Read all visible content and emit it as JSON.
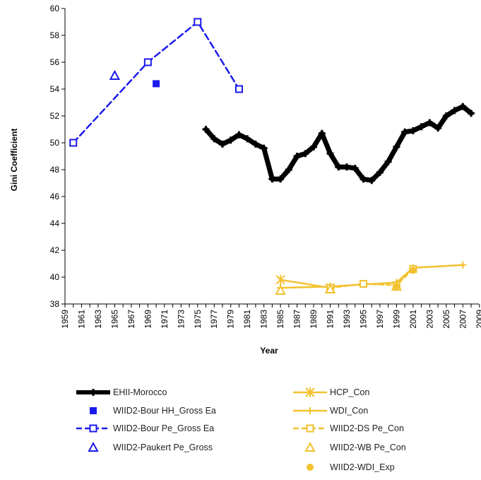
{
  "chart_data": {
    "type": "line",
    "title": "",
    "xlabel": "Year",
    "ylabel": "Gini Coefficient",
    "xlim": [
      1959,
      2009
    ],
    "ylim": [
      38,
      60
    ],
    "x_ticks": [
      "1959",
      "1961",
      "1963",
      "1965",
      "1967",
      "1969",
      "1971",
      "1973",
      "1975",
      "1977",
      "1979",
      "1981",
      "1983",
      "1985",
      "1987",
      "1989",
      "1991",
      "1993",
      "1995",
      "1997",
      "1999",
      "2001",
      "2003",
      "2005",
      "2007",
      "2009"
    ],
    "y_ticks": [
      "38",
      "40",
      "42",
      "44",
      "46",
      "48",
      "50",
      "52",
      "54",
      "56",
      "58",
      "60"
    ],
    "grid": false,
    "legend_position": "bottom",
    "series": [
      {
        "name": "EHII-Morocco",
        "style": "line-plus",
        "color": "#000000",
        "x": [
          1976,
          1977,
          1978,
          1979,
          1980,
          1981,
          1982,
          1983,
          1984,
          1985,
          1986,
          1987,
          1988,
          1989,
          1990,
          1991,
          1992,
          1993,
          1994,
          1995,
          1996,
          1997,
          1998,
          1999,
          2000,
          2001,
          2002,
          2003,
          2004,
          2005,
          2006,
          2007,
          2008
        ],
        "y": [
          51.0,
          50.3,
          49.9,
          50.2,
          50.6,
          50.3,
          49.9,
          49.6,
          47.3,
          47.3,
          48.0,
          49.0,
          49.2,
          49.7,
          50.7,
          49.2,
          48.2,
          48.2,
          48.1,
          47.3,
          47.2,
          47.8,
          48.6,
          49.7,
          50.8,
          50.9,
          51.2,
          51.5,
          51.1,
          52.0,
          52.4,
          52.7,
          52.2
        ]
      },
      {
        "name": "WIID2-Bour HH_Gross Ea",
        "style": "filled-square",
        "color": "#1a1aee",
        "x": [
          1970
        ],
        "y": [
          54.4
        ]
      },
      {
        "name": "WIID2-Bour Pe_Gross Ea",
        "style": "dashed-open-square",
        "color": "#1a1aee",
        "x": [
          1960,
          1969,
          1975,
          1980
        ],
        "y": [
          50.0,
          56.0,
          59.0,
          54.0
        ]
      },
      {
        "name": "WIID2-Paukert Pe_Gross",
        "style": "open-triangle",
        "color": "#1a1aee",
        "x": [
          1965
        ],
        "y": [
          55.0
        ]
      },
      {
        "name": "HCP_Con",
        "style": "line-star",
        "color": "#f2c12e",
        "x": [
          1985,
          1991
        ],
        "y": [
          39.8,
          39.2
        ]
      },
      {
        "name": "WDI_Con",
        "style": "line-plus",
        "color": "#f2c12e",
        "x": [
          1985,
          1991,
          1999,
          2001,
          2007
        ],
        "y": [
          39.2,
          39.3,
          39.6,
          40.7,
          40.9
        ]
      },
      {
        "name": "WIID2-DS Pe_Con",
        "style": "dashed-open-square",
        "color": "#f2c12e",
        "x": [
          1991,
          1995,
          1999,
          2001
        ],
        "y": [
          39.2,
          39.5,
          39.4,
          40.6
        ]
      },
      {
        "name": "WIID2-WB Pe_Con",
        "style": "open-triangle",
        "color": "#f2c12e",
        "x": [
          1985,
          1991,
          1999
        ],
        "y": [
          39.0,
          39.1,
          39.3
        ]
      },
      {
        "name": "WIID2-WDI_Exp",
        "style": "filled-circle",
        "color": "#f2c12e",
        "x": [
          1999,
          2001
        ],
        "y": [
          39.3,
          40.5
        ]
      }
    ]
  }
}
